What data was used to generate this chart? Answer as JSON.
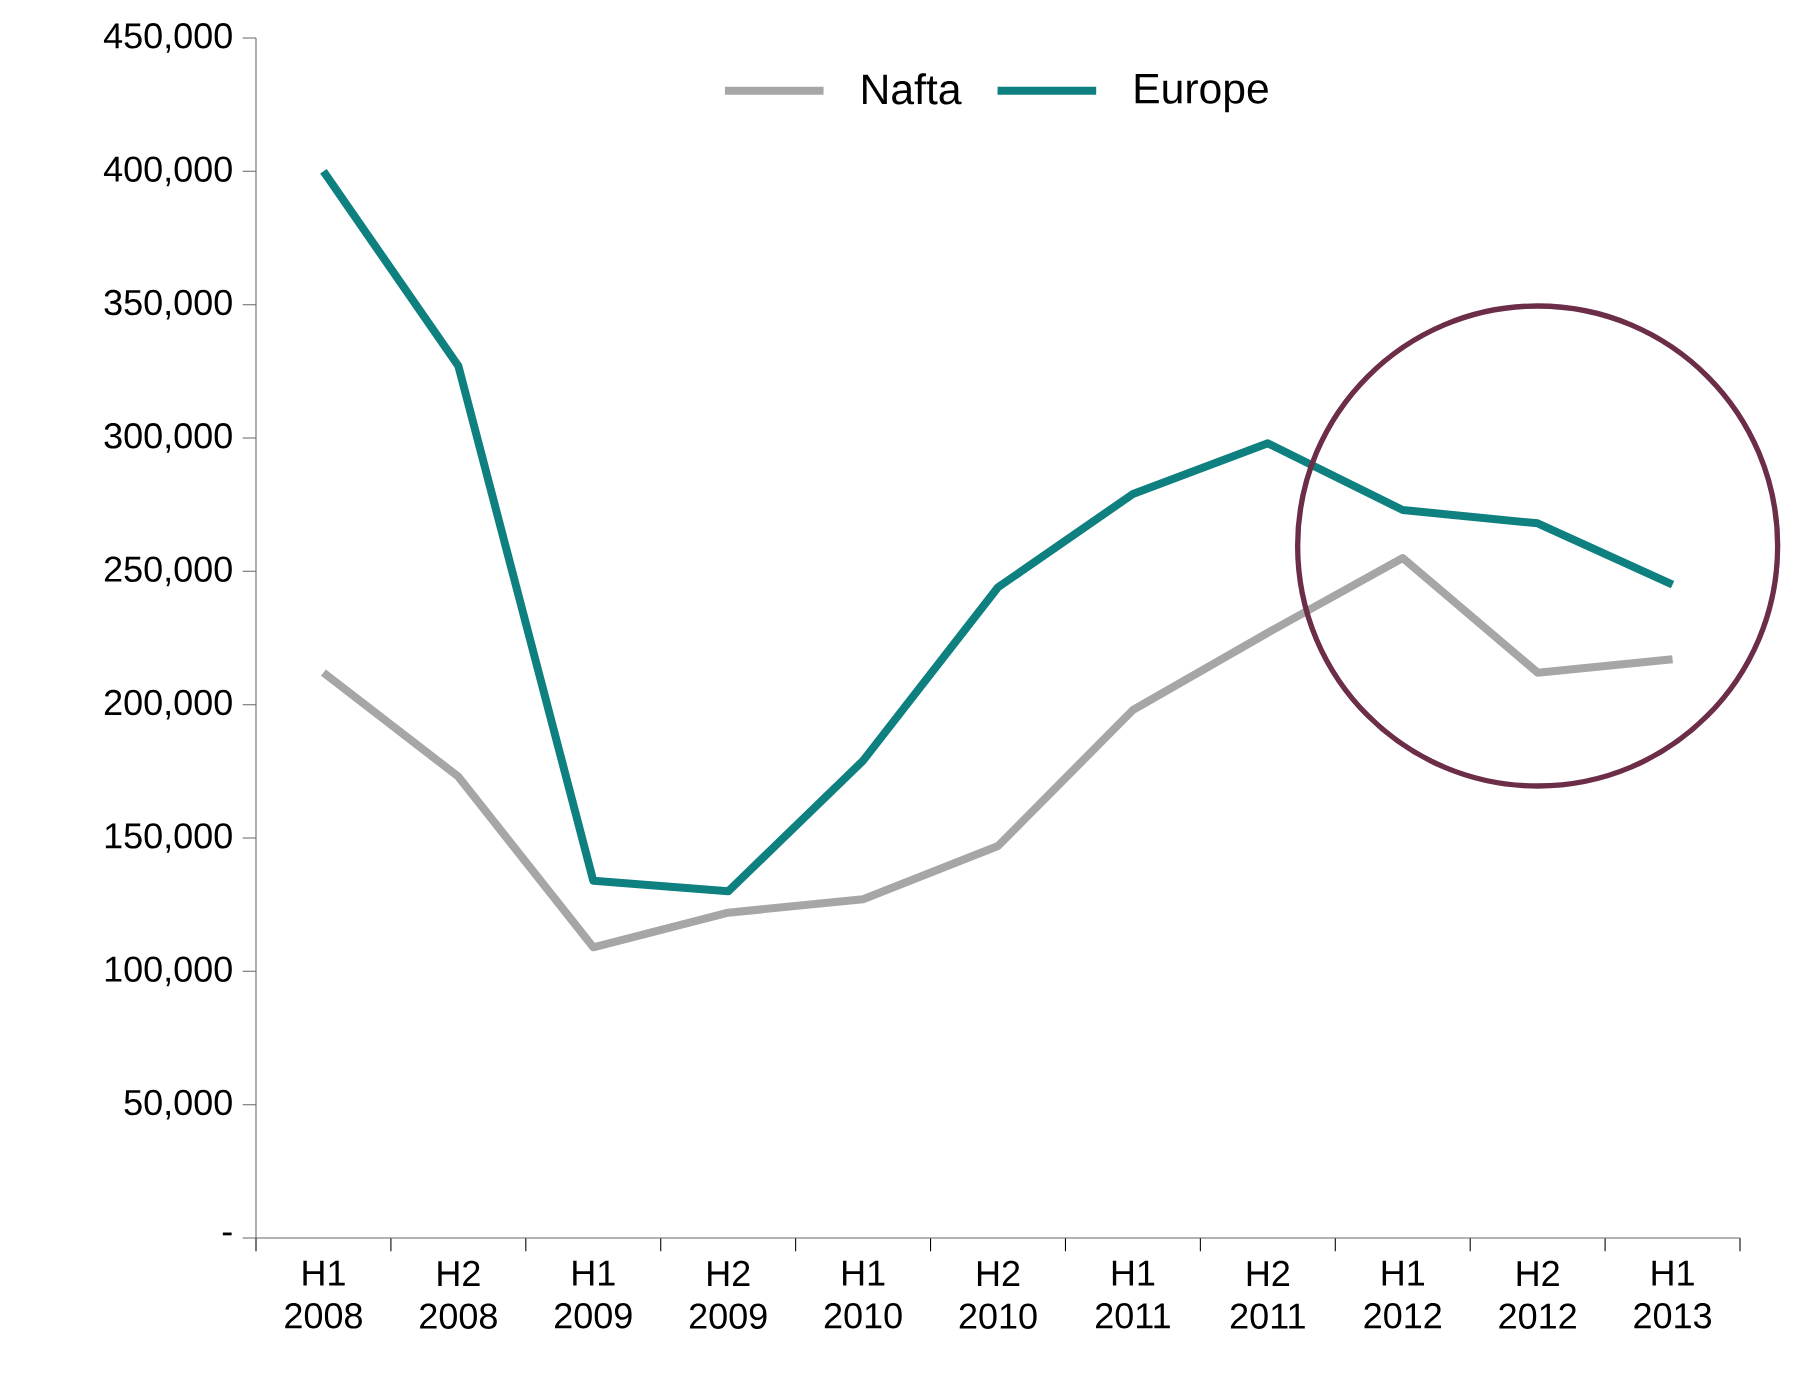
{
  "chart_data": {
    "type": "line",
    "categories": [
      "H1 2008",
      "H2 2008",
      "H1 2009",
      "H2 2009",
      "H1 2010",
      "H2 2010",
      "H1 2011",
      "H2 2011",
      "H1 2012",
      "H2 2012",
      "H1 2013"
    ],
    "series": [
      {
        "name": "Nafta",
        "color": "#a6a6a6",
        "values": [
          212000,
          173000,
          109000,
          122000,
          127000,
          147000,
          198000,
          227000,
          255000,
          212000,
          217000
        ]
      },
      {
        "name": "Europe",
        "color": "#0f8080",
        "values": [
          400000,
          327000,
          134000,
          130000,
          179000,
          244000,
          279000,
          298000,
          273000,
          268000,
          245000
        ]
      }
    ],
    "ylim": [
      0,
      450000
    ],
    "yticks": [
      {
        "value": 0,
        "label": "-"
      },
      {
        "value": 50000,
        "label": "50,000"
      },
      {
        "value": 100000,
        "label": "100,000"
      },
      {
        "value": 150000,
        "label": "150,000"
      },
      {
        "value": 200000,
        "label": "200,000"
      },
      {
        "value": 250000,
        "label": "250,000"
      },
      {
        "value": 300000,
        "label": "300,000"
      },
      {
        "value": 350000,
        "label": "350,000"
      },
      {
        "value": 400000,
        "label": "400,000"
      },
      {
        "value": 450000,
        "label": "450,000"
      }
    ],
    "legend": "top",
    "grid": false,
    "marker": "none",
    "line_style": "solid"
  }
}
